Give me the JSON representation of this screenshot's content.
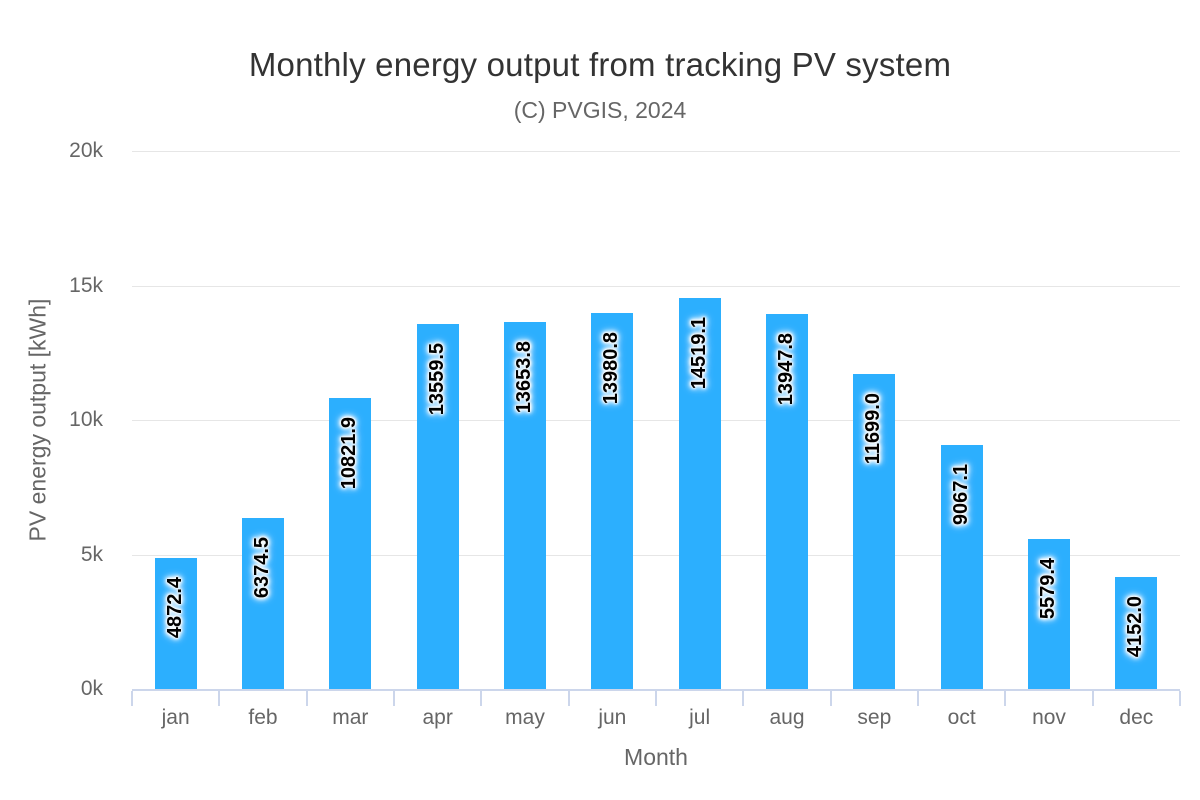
{
  "chart_data": {
    "type": "bar",
    "title": "Monthly energy output from tracking PV system",
    "subtitle": "(C) PVGIS, 2024",
    "xlabel": "Month",
    "ylabel": "PV energy output [kWh]",
    "categories": [
      "jan",
      "feb",
      "mar",
      "apr",
      "may",
      "jun",
      "jul",
      "aug",
      "sep",
      "oct",
      "nov",
      "dec"
    ],
    "values": [
      4872.4,
      6374.5,
      10821.9,
      13559.5,
      13653.8,
      13980.8,
      14519.1,
      13947.8,
      11699.0,
      9067.1,
      5579.4,
      4152.0
    ],
    "bar_labels": [
      "4872.4",
      "6374.5",
      "10821.9",
      "13559.5",
      "13653.8",
      "13980.8",
      "14519.1",
      "13947.8",
      "11699.0",
      "9067.1",
      "5579.4",
      "4152.0"
    ],
    "ylim": [
      0,
      20000
    ],
    "ytick_step": 5000,
    "ytick_labels": [
      "0k",
      "5k",
      "10k",
      "15k",
      "20k"
    ],
    "grid": "horizontal",
    "legend": "none",
    "colors": {
      "bar": "#2CAFFE",
      "gridline": "#E6E6E6",
      "axis_line": "#CCD6EB",
      "title": "#333333",
      "subtitle": "#666666",
      "axis_text": "#666666",
      "bar_label_text": "#000000"
    }
  }
}
